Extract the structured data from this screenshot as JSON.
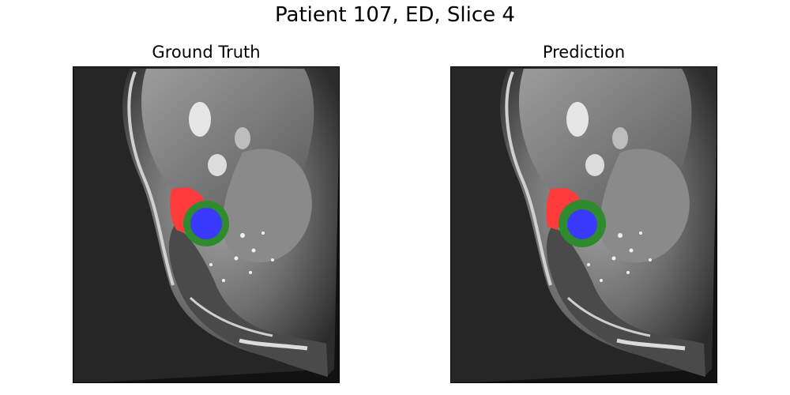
{
  "figure": {
    "suptitle": "Patient 107, ED, Slice 4"
  },
  "panels": [
    {
      "title": "Ground Truth"
    },
    {
      "title": "Prediction"
    }
  ],
  "colors": {
    "label_1": "#ff3b3b",
    "label_2": "#2e8b2e",
    "label_3": "#3a3aff",
    "background": "#0b0b0b"
  }
}
